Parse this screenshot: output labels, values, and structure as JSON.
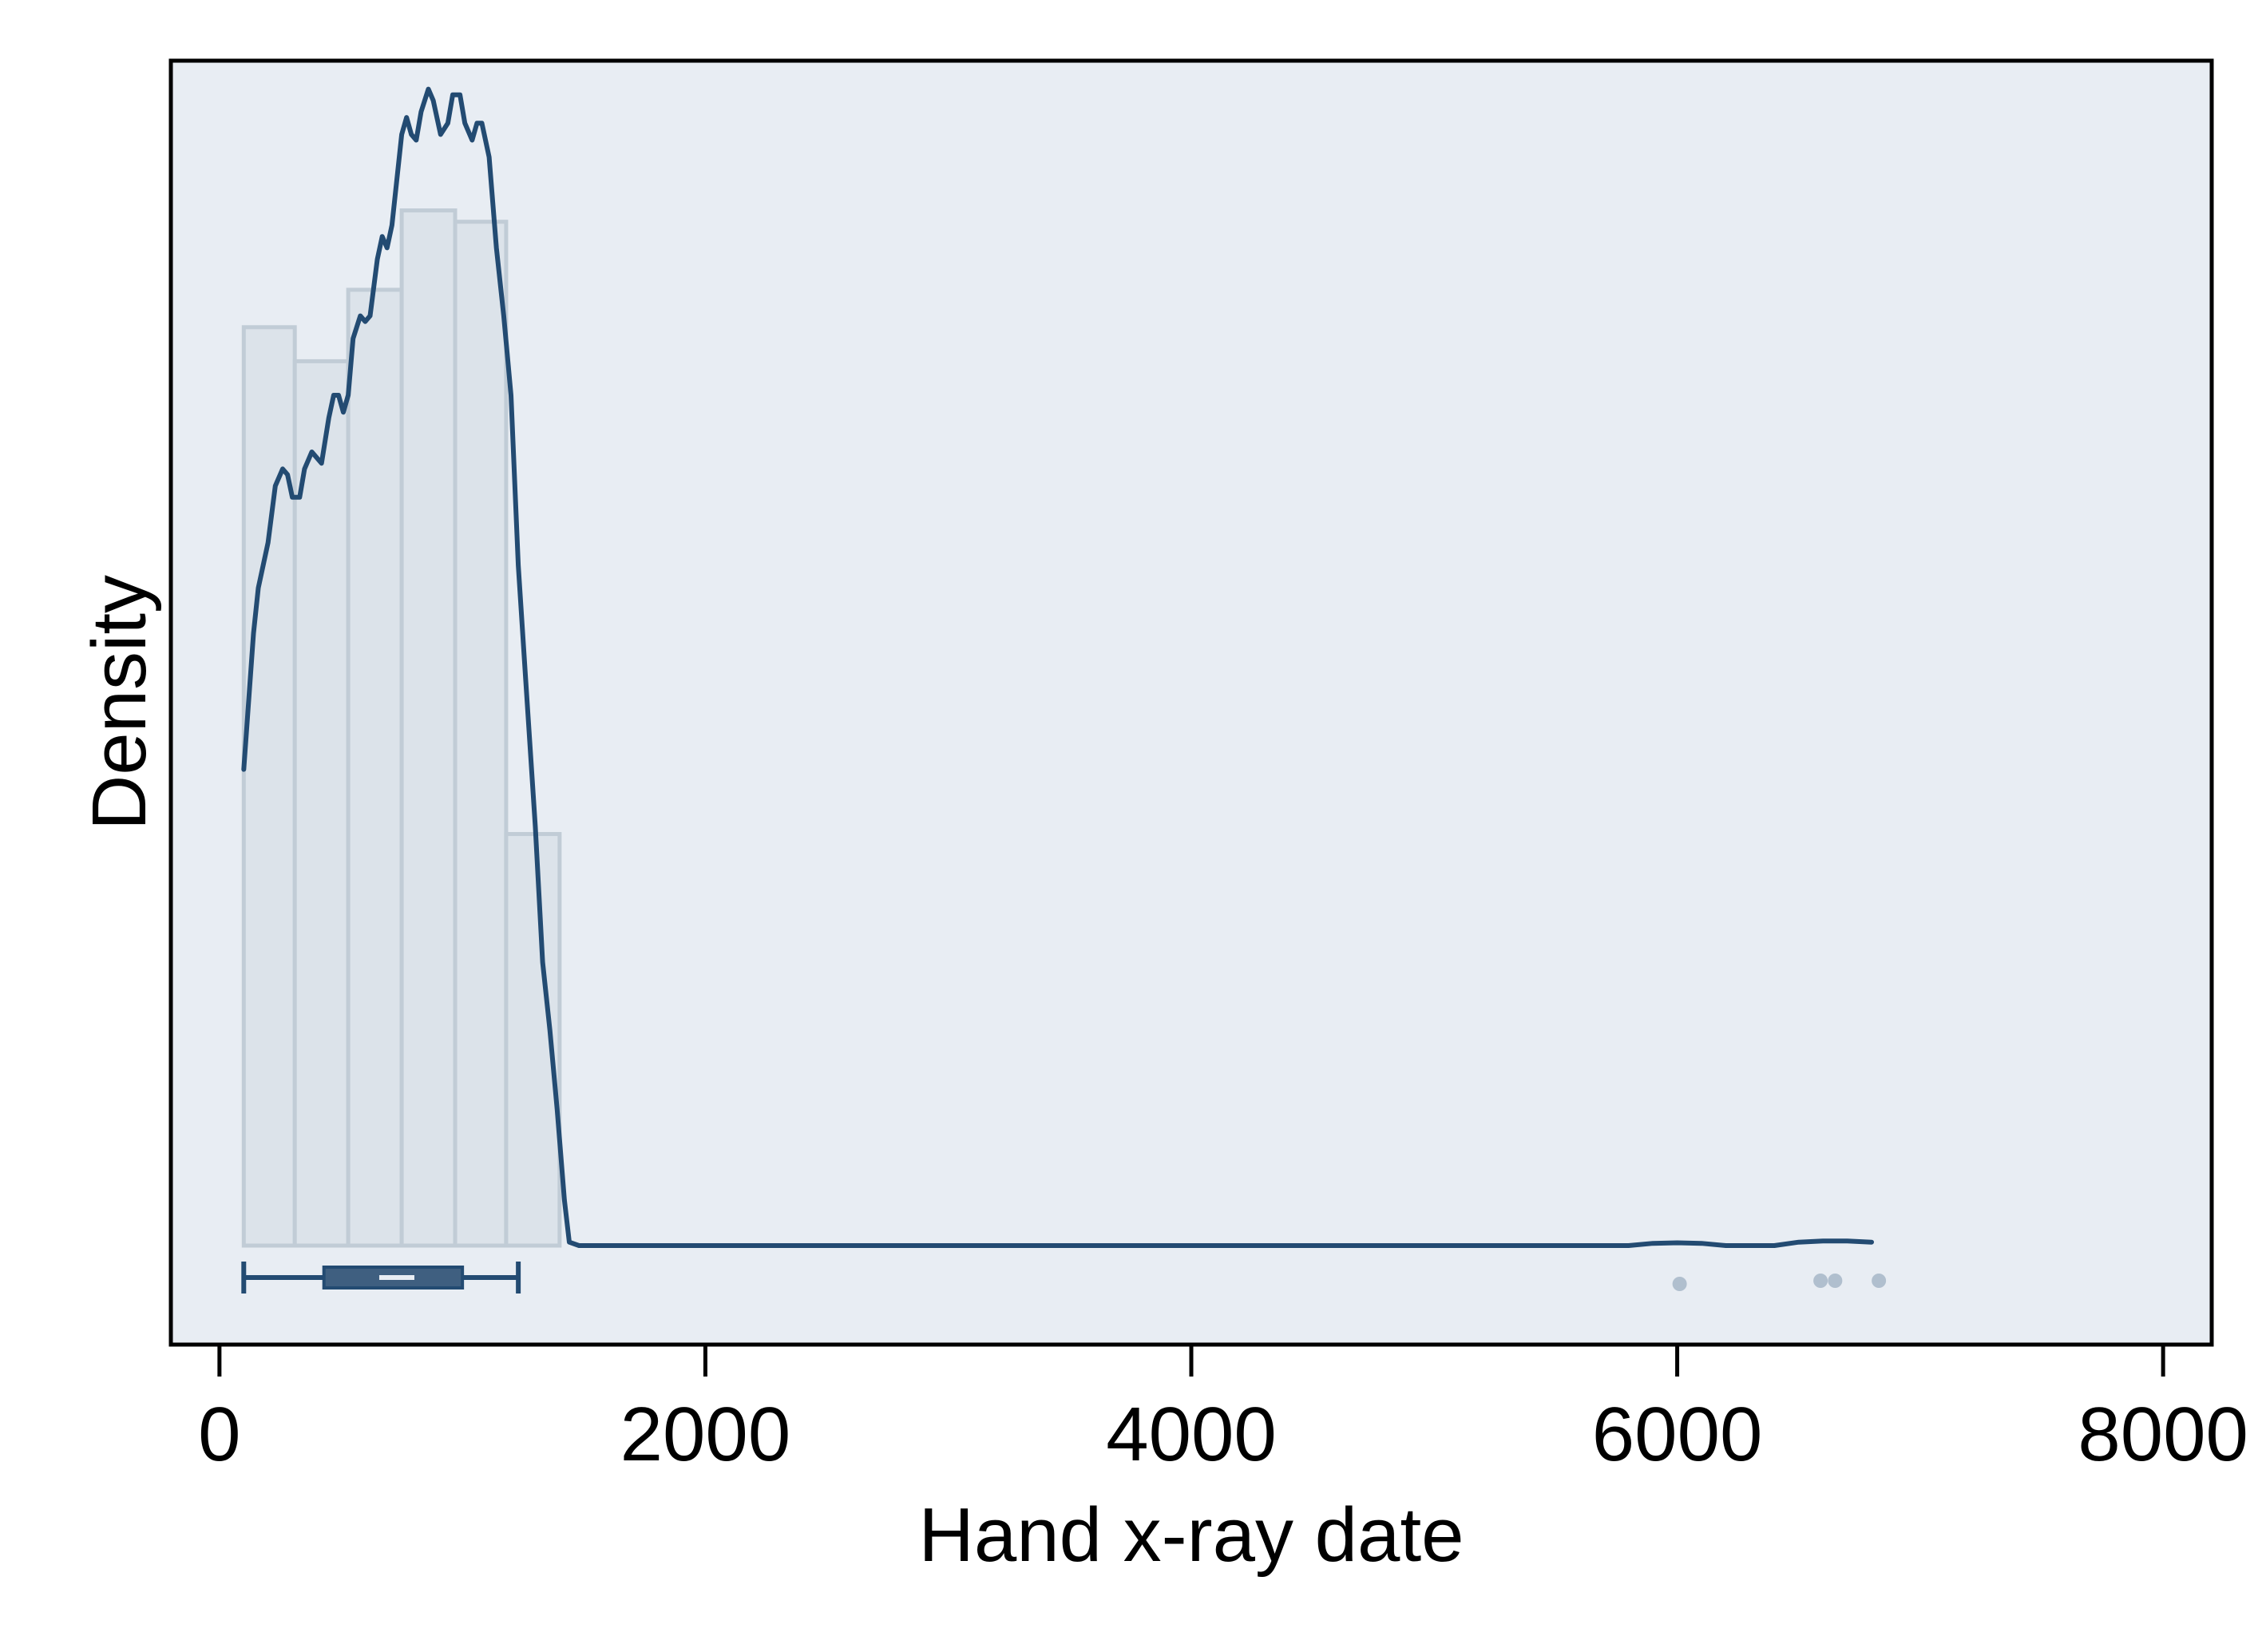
{
  "chart_data": {
    "type": "histogram",
    "xlabel": "Hand x-ray date",
    "ylabel": "Density",
    "xlim": [
      -200,
      8200
    ],
    "ylim": [
      0,
      1.1
    ],
    "x_ticks": [
      0,
      2000,
      4000,
      6000,
      8000
    ],
    "y_ticks": [],
    "grid": false,
    "colors": {
      "plot_background": "#e8edf3",
      "bar_fill": "#dce3ea",
      "bar_stroke": "#c1ccd6",
      "density_line": "#234b72",
      "box": "#3f5f80",
      "box_stroke": "#234b72",
      "median": "#e8edf3",
      "outlier": "#b0bfce",
      "frame": "#000000"
    },
    "histogram": {
      "bins": [
        {
          "x0": 100,
          "x1": 310,
          "height": 0.81
        },
        {
          "x0": 310,
          "x1": 530,
          "height": 0.78
        },
        {
          "x0": 530,
          "x1": 750,
          "height": 0.843
        },
        {
          "x0": 750,
          "x1": 970,
          "height": 0.913
        },
        {
          "x0": 970,
          "x1": 1180,
          "height": 0.903
        },
        {
          "x0": 1180,
          "x1": 1400,
          "height": 0.363
        }
      ]
    },
    "density": [
      [
        100,
        0.42
      ],
      [
        140,
        0.54
      ],
      [
        160,
        0.58
      ],
      [
        200,
        0.62
      ],
      [
        230,
        0.67
      ],
      [
        260,
        0.685
      ],
      [
        280,
        0.68
      ],
      [
        300,
        0.66
      ],
      [
        330,
        0.66
      ],
      [
        350,
        0.685
      ],
      [
        380,
        0.7
      ],
      [
        420,
        0.69
      ],
      [
        450,
        0.73
      ],
      [
        470,
        0.75
      ],
      [
        490,
        0.75
      ],
      [
        510,
        0.735
      ],
      [
        530,
        0.75
      ],
      [
        550,
        0.8
      ],
      [
        580,
        0.82
      ],
      [
        600,
        0.815
      ],
      [
        620,
        0.82
      ],
      [
        650,
        0.87
      ],
      [
        670,
        0.89
      ],
      [
        690,
        0.88
      ],
      [
        710,
        0.9
      ],
      [
        730,
        0.94
      ],
      [
        750,
        0.98
      ],
      [
        770,
        0.995
      ],
      [
        790,
        0.98
      ],
      [
        810,
        0.975
      ],
      [
        830,
        1.0
      ],
      [
        860,
        1.02
      ],
      [
        880,
        1.01
      ],
      [
        910,
        0.98
      ],
      [
        940,
        0.99
      ],
      [
        960,
        1.015
      ],
      [
        990,
        1.015
      ],
      [
        1010,
        0.99
      ],
      [
        1040,
        0.975
      ],
      [
        1060,
        0.99
      ],
      [
        1080,
        0.99
      ],
      [
        1110,
        0.96
      ],
      [
        1140,
        0.88
      ],
      [
        1170,
        0.82
      ],
      [
        1200,
        0.75
      ],
      [
        1230,
        0.6
      ],
      [
        1260,
        0.5
      ],
      [
        1300,
        0.37
      ],
      [
        1330,
        0.25
      ],
      [
        1360,
        0.19
      ],
      [
        1390,
        0.12
      ],
      [
        1420,
        0.04
      ],
      [
        1440,
        0.003
      ],
      [
        1480,
        0.0
      ],
      [
        1700,
        0.0
      ],
      [
        3000,
        0.0
      ],
      [
        4500,
        0.0
      ],
      [
        5800,
        0.0
      ],
      [
        5900,
        0.002
      ],
      [
        6000,
        0.0025
      ],
      [
        6100,
        0.002
      ],
      [
        6200,
        0.0
      ],
      [
        6400,
        0.0
      ],
      [
        6500,
        0.003
      ],
      [
        6600,
        0.004
      ],
      [
        6700,
        0.004
      ],
      [
        6800,
        0.003
      ]
    ],
    "boxplot": {
      "whisker_low": 100,
      "q1": 430,
      "median": 730,
      "q3": 1000,
      "whisker_high": 1230,
      "outliers": [
        6010,
        6590,
        6650,
        6830
      ]
    }
  }
}
